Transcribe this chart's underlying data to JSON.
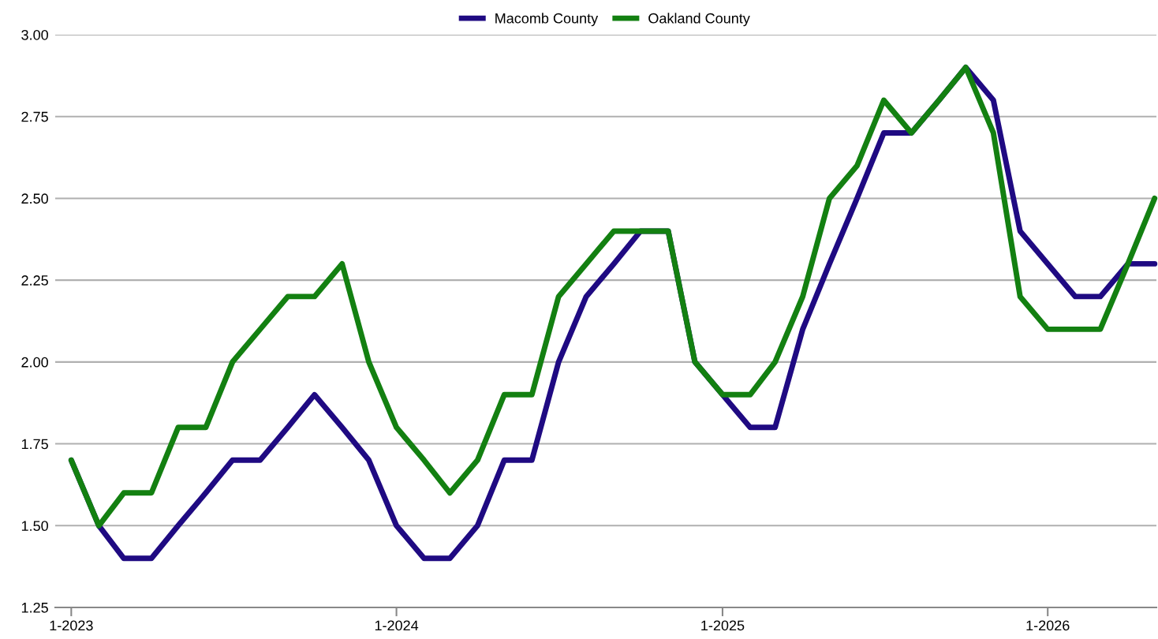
{
  "chart_data": {
    "type": "line",
    "x": [
      "2023-01",
      "2023-02",
      "2023-03",
      "2023-04",
      "2023-05",
      "2023-06",
      "2023-07",
      "2023-08",
      "2023-09",
      "2023-10",
      "2023-11",
      "2023-12",
      "2024-01",
      "2024-02",
      "2024-03",
      "2024-04",
      "2024-05",
      "2024-06",
      "2024-07",
      "2024-08",
      "2024-09",
      "2024-10",
      "2024-11",
      "2024-12",
      "2025-01",
      "2025-02",
      "2025-03",
      "2025-04",
      "2025-05",
      "2025-06",
      "2025-07",
      "2025-08",
      "2025-09",
      "2025-10",
      "2025-11",
      "2025-12",
      "2026-01",
      "2026-02",
      "2026-03",
      "2026-04",
      "2026-05"
    ],
    "series": [
      {
        "name": "Macomb County",
        "color": "#1f0a82",
        "values": [
          1.7,
          1.5,
          1.4,
          1.4,
          1.5,
          1.6,
          1.7,
          1.7,
          1.8,
          1.9,
          1.8,
          1.7,
          1.5,
          1.4,
          1.4,
          1.5,
          1.7,
          1.7,
          2.0,
          2.2,
          2.3,
          2.4,
          2.4,
          2.0,
          1.9,
          1.8,
          1.8,
          2.1,
          2.3,
          2.5,
          2.7,
          2.7,
          2.8,
          2.9,
          2.8,
          2.4,
          2.3,
          2.2,
          2.2,
          2.3,
          2.3
        ]
      },
      {
        "name": "Oakland County",
        "color": "#138011",
        "values": [
          1.7,
          1.5,
          1.6,
          1.6,
          1.8,
          1.8,
          2.0,
          2.1,
          2.2,
          2.2,
          2.3,
          2.0,
          1.8,
          1.7,
          1.6,
          1.7,
          1.9,
          1.9,
          2.2,
          2.3,
          2.4,
          2.4,
          2.4,
          2.0,
          1.9,
          1.9,
          2.0,
          2.2,
          2.5,
          2.6,
          2.8,
          2.7,
          2.8,
          2.9,
          2.7,
          2.2,
          2.1,
          2.1,
          2.1,
          2.3,
          2.5
        ]
      }
    ],
    "ylim": [
      1.25,
      3.0
    ],
    "yticks": [
      {
        "value": 1.25,
        "label": "1.25"
      },
      {
        "value": 1.5,
        "label": "1.50"
      },
      {
        "value": 1.75,
        "label": "1.75"
      },
      {
        "value": 2.0,
        "label": "2.00"
      },
      {
        "value": 2.25,
        "label": "2.25"
      },
      {
        "value": 2.5,
        "label": "2.50"
      },
      {
        "value": 2.75,
        "label": "2.75"
      },
      {
        "value": 3.0,
        "label": "3.00"
      }
    ],
    "xlim": [
      "2022-12-14",
      "2026-05-03"
    ],
    "xticks": [
      {
        "value": "2023-01",
        "label": "1-2023"
      },
      {
        "value": "2024-01",
        "label": "1-2024"
      },
      {
        "value": "2025-01",
        "label": "1-2025"
      },
      {
        "value": "2026-01",
        "label": "1-2026"
      }
    ],
    "grid": "y",
    "legend": "top",
    "marker": "none",
    "line_style": "solid"
  }
}
